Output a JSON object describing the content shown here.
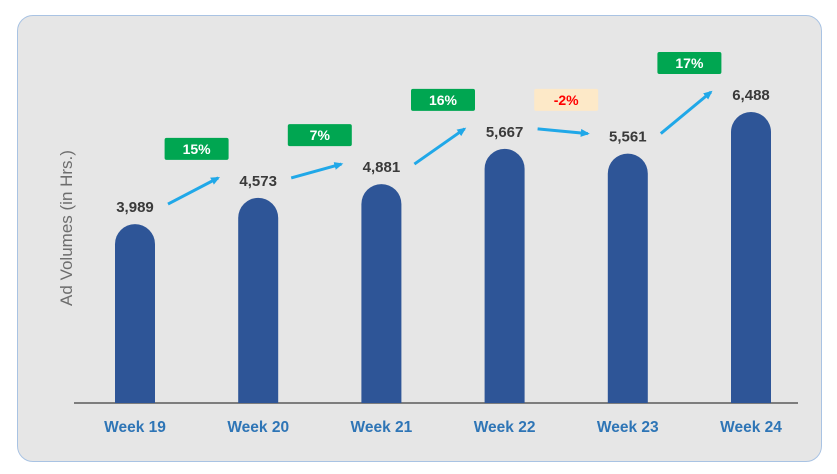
{
  "chart_data": {
    "type": "bar",
    "ylabel": "Ad Volumes (in Hrs.)",
    "xlabel": "",
    "categories": [
      "Week 19",
      "Week 20",
      "Week 21",
      "Week 22",
      "Week 23",
      "Week 24"
    ],
    "values": [
      3989,
      4573,
      4881,
      5667,
      5561,
      6488
    ],
    "value_labels": [
      "3,989",
      "4,573",
      "4,881",
      "5,667",
      "5,561",
      "6,488"
    ],
    "growth_labels": [
      {
        "text": "15%",
        "trend": "up"
      },
      {
        "text": "7%",
        "trend": "up"
      },
      {
        "text": "16%",
        "trend": "up"
      },
      {
        "text": "-2%",
        "trend": "down"
      },
      {
        "text": "17%",
        "trend": "up"
      }
    ],
    "ylim": [
      0,
      6488
    ],
    "grid": false,
    "legend": "none"
  },
  "colors": {
    "bar": "#2e5597",
    "tick_label": "#2e75b6",
    "arrow": "#20a8e8",
    "up_badge_bg": "#00a651",
    "up_badge_text": "#ffffff",
    "down_badge_bg": "#fde9c8",
    "down_badge_text": "#ff0000"
  }
}
